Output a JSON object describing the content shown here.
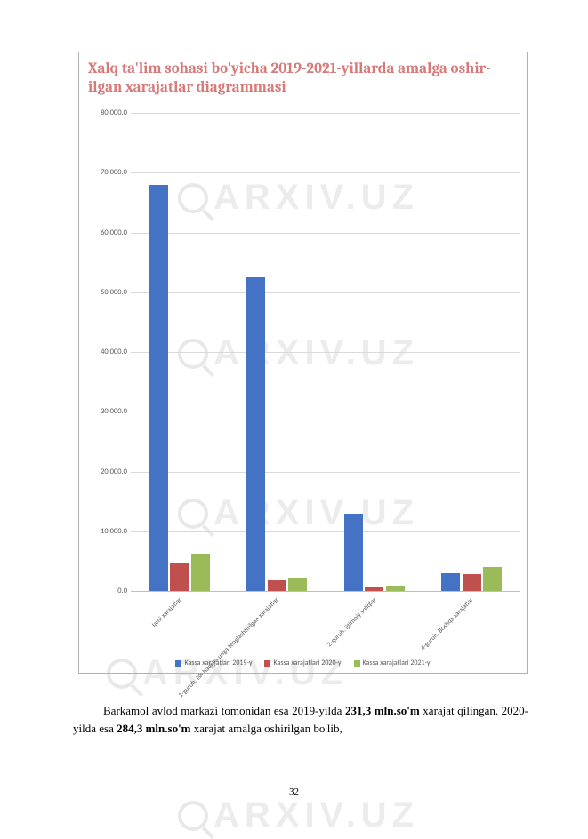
{
  "watermark_text": "ARXIV.UZ",
  "chart": {
    "type": "bar",
    "title": "Xalq ta'lim sohasi bo'yicha 2019-2021-yillarda amalga oshir-ilgan xarajatlar diagrammasi",
    "title_color": "#d77a7a",
    "title_fontsize": 17,
    "ylim": [
      0,
      80000
    ],
    "ytick_step": 10000,
    "yticks": [
      "0.0",
      "10 000.0",
      "20 000.0",
      "30 000.0",
      "40 000.0",
      "50 000.0",
      "60 000.0",
      "70 000.0",
      "80 000.0"
    ],
    "categories": [
      "Jami xarajatlar",
      "1-guruh. Ish haqi va unga tenglashtirilgan xarajatlar",
      "2-guruh. Ijtimoiy soliqlar",
      "4-guruh. Boshqa xarajatlar"
    ],
    "series": [
      {
        "name": "Kassa xarajatlari 2019-y",
        "color": "#4472c4",
        "values": [
          68000,
          52500,
          13000,
          3000
        ]
      },
      {
        "name": "Kassa xarajatlari 2020-y",
        "color": "#c0504d",
        "values": [
          4800,
          1800,
          800,
          2800
        ]
      },
      {
        "name": "Kassa xarajatlari 2021-y",
        "color": "#9bbb59",
        "values": [
          6300,
          2300,
          900,
          4000
        ]
      }
    ],
    "grid_color": "#d9d9d9",
    "axis_color": "#bfbfbf",
    "tick_label_color": "#5a5a5a",
    "tick_fontsize": 8.5,
    "xtick_fontsize": 7.5,
    "background_color": "#ffffff",
    "bar_group_width": 0.62,
    "bar_gap": 0.02
  },
  "body": {
    "line1_a": "Barkamol avlod markazi tomonidan esa 2019-yilda ",
    "line1_b": "231,3 mln.so'm",
    "line2_a": "xarajat qilingan. 2020-yilda esa ",
    "line2_b": "284,3 mln.so'm",
    "line2_c": " xarajat amalga oshirilgan",
    "line3": "bo'lib,"
  },
  "page_number": "32"
}
